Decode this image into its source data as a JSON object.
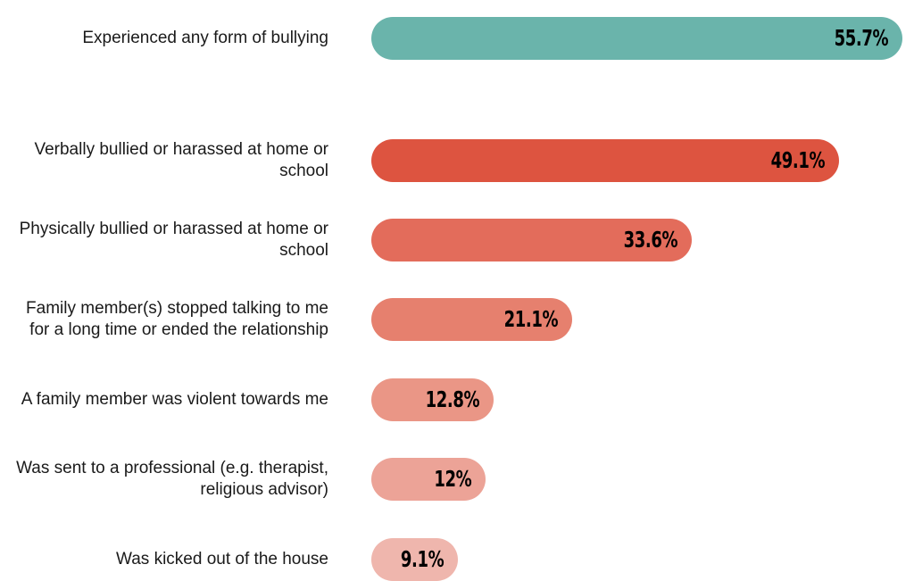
{
  "chart_data": {
    "type": "bar",
    "orientation": "horizontal",
    "title": "",
    "xlabel": "",
    "ylabel": "",
    "xlim": [
      0,
      55.7
    ],
    "grid": false,
    "legend": "none",
    "categories": [
      "Experienced any form of bullying",
      "Verbally bullied or harassed at home or school",
      "Physically bullied or harassed at home or school",
      "Family member(s) stopped talking to me for a long time or ended the relationship",
      "A family member was violent towards me",
      "Was sent to a professional (e.g. therapist, religious advisor)",
      "Was kicked out of the house"
    ],
    "values": [
      55.7,
      49.1,
      33.6,
      21.1,
      12.8,
      12,
      9.1
    ],
    "value_labels": [
      "55.7%",
      "49.1%",
      "33.6%",
      "21.1%",
      "12.8%",
      "12%",
      "9.1%"
    ],
    "colors": [
      "#6ab4ab",
      "#dd5440",
      "#e36c5b",
      "#e6806e",
      "#ea9686",
      "#eca397",
      "#efb6ad"
    ]
  }
}
